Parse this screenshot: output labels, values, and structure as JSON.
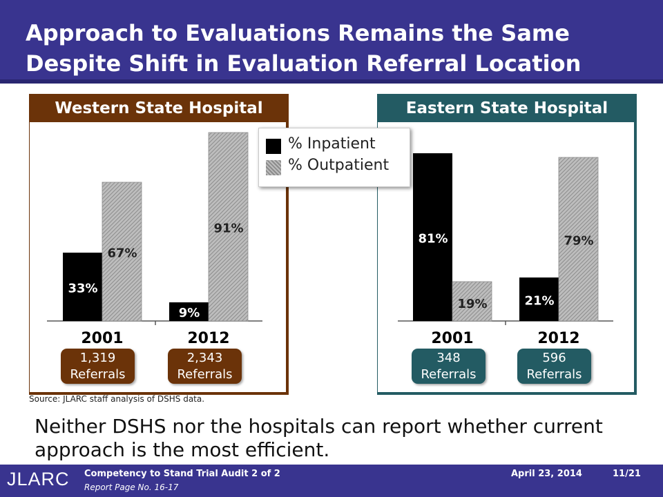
{
  "title": "Approach to Evaluations Remains the Same Despite Shift in Evaluation Referral Location",
  "legend": {
    "inpatient": "% Inpatient",
    "outpatient": "% Outpatient"
  },
  "colors": {
    "inpatient": "#000000",
    "outpatient": "#a6a6a6",
    "west": "#6b3309",
    "east": "#235b63",
    "header": "#39348f"
  },
  "panels": [
    {
      "id": "west",
      "title": "Western State Hospital",
      "referrals": [
        {
          "number": "1,319",
          "label": "Referrals"
        },
        {
          "number": "2,343",
          "label": "Referrals"
        }
      ]
    },
    {
      "id": "east",
      "title": "Eastern State Hospital",
      "referrals": [
        {
          "number": "348",
          "label": "Referrals"
        },
        {
          "number": "596",
          "label": "Referrals"
        }
      ]
    }
  ],
  "chart_data": [
    {
      "type": "bar",
      "title": "Western State Hospital",
      "categories": [
        "2001",
        "2012"
      ],
      "ylim": [
        0,
        100
      ],
      "series": [
        {
          "name": "% Inpatient",
          "values": [
            33,
            9
          ],
          "labels": [
            "33%",
            "9%"
          ]
        },
        {
          "name": "% Outpatient",
          "values": [
            67,
            91
          ],
          "labels": [
            "67%",
            "91%"
          ]
        }
      ]
    },
    {
      "type": "bar",
      "title": "Eastern State Hospital",
      "categories": [
        "2001",
        "2012"
      ],
      "ylim": [
        0,
        100
      ],
      "series": [
        {
          "name": "% Inpatient",
          "values": [
            81,
            21
          ],
          "labels": [
            "81%",
            "21%"
          ]
        },
        {
          "name": "% Outpatient",
          "values": [
            19,
            79
          ],
          "labels": [
            "19%",
            "79%"
          ]
        }
      ]
    }
  ],
  "source": "Source: JLARC staff analysis of DSHS data.",
  "note": "Neither DSHS nor the hospitals can report whether current approach is the most efficient.",
  "footer": {
    "logo": "JLARC",
    "report": "Competency to Stand Trial Audit 2 of 2",
    "page_ref": "Report Page No. 16-17",
    "date": "April 23, 2014",
    "slide": "11/21"
  }
}
